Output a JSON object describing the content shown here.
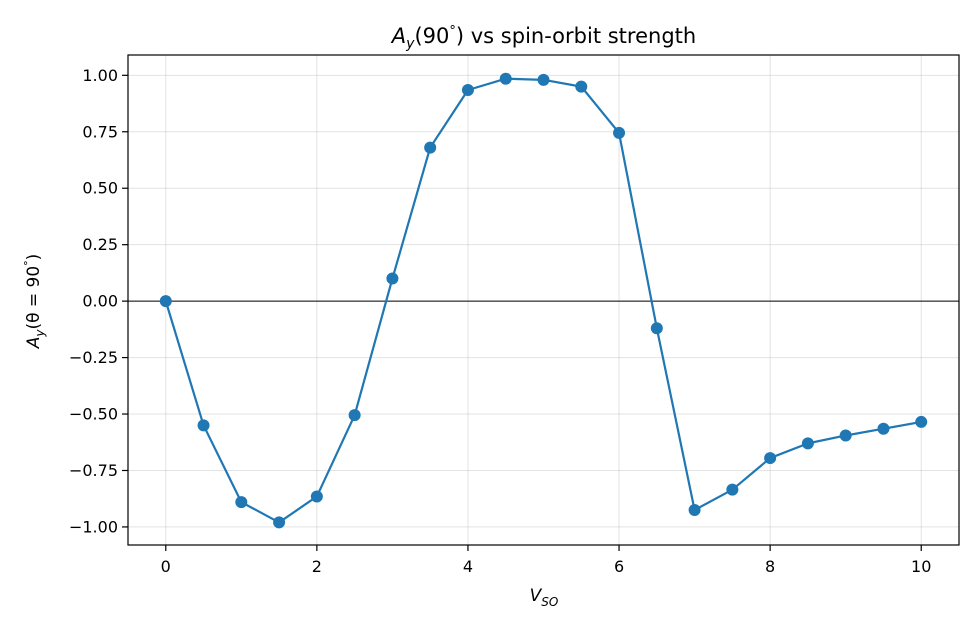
{
  "chart_data": {
    "type": "line",
    "title": "A_y(90°) vs spin-orbit strength",
    "title_parts": [
      "A",
      "y",
      "(90",
      "°",
      ") vs spin-orbit strength"
    ],
    "xlabel": "V_SO",
    "xlabel_parts": [
      "V",
      "SO"
    ],
    "ylabel": "A_y(θ = 90°)",
    "ylabel_parts": [
      "A",
      "y",
      "(θ = 90",
      "°",
      ")"
    ],
    "xlim": [
      -0.5,
      10.5
    ],
    "ylim": [
      -1.08,
      1.09
    ],
    "xticks": [
      0,
      2,
      4,
      6,
      8,
      10
    ],
    "xtick_labels": [
      "0",
      "2",
      "4",
      "6",
      "8",
      "10"
    ],
    "yticks": [
      -1.0,
      -0.75,
      -0.5,
      -0.25,
      0.0,
      0.25,
      0.5,
      0.75,
      1.0
    ],
    "ytick_labels": [
      "−1.00",
      "−0.75",
      "−0.50",
      "−0.25",
      "0.00",
      "0.25",
      "0.50",
      "0.75",
      "1.00"
    ],
    "grid": true,
    "zero_line": true,
    "series": [
      {
        "color": "#1f77b4",
        "marker": "circle",
        "x": [
          0,
          0.5,
          1.0,
          1.5,
          2.0,
          2.5,
          3.0,
          3.5,
          4.0,
          4.5,
          5.0,
          5.5,
          6.0,
          6.5,
          7.0,
          7.5,
          8.0,
          8.5,
          9.0,
          9.5,
          10.0
        ],
        "y": [
          0.0,
          -0.55,
          -0.89,
          -0.98,
          -0.865,
          -0.505,
          0.1,
          0.68,
          0.935,
          0.985,
          0.98,
          0.95,
          0.745,
          -0.12,
          -0.925,
          -0.835,
          -0.695,
          -0.63,
          -0.595,
          -0.565,
          -0.535
        ]
      }
    ]
  }
}
